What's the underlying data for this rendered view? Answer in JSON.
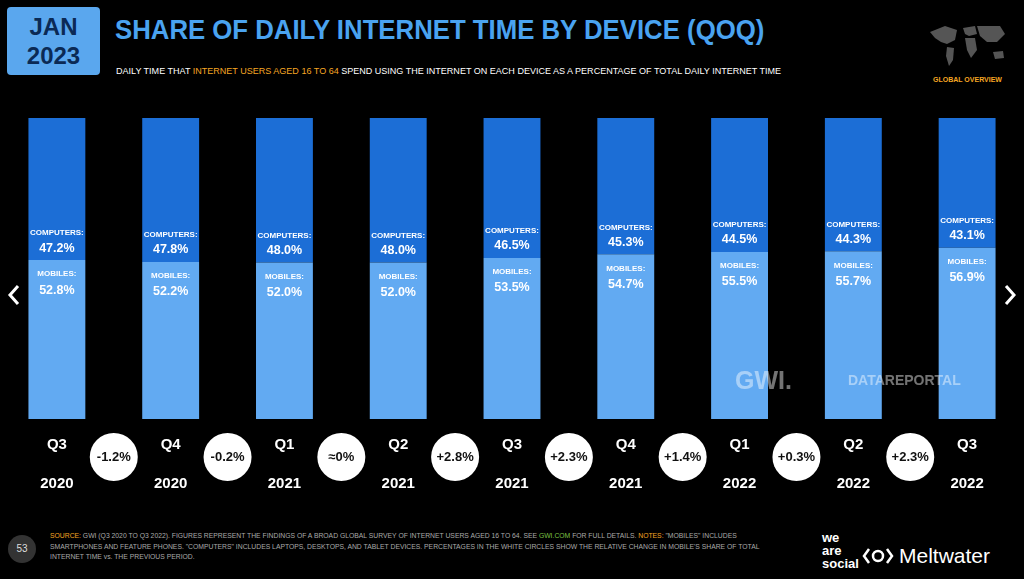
{
  "chart_data": {
    "type": "bar",
    "stacked": true,
    "data_labels": true,
    "tick_labels": "x",
    "grid": false,
    "title": "SHARE OF DAILY INTERNET TIME BY DEVICE (QOQ)",
    "subtitle": "DAILY TIME THAT INTERNET USERS AGED 16 TO 64 SPEND USING THE INTERNET ON EACH DEVICE AS A PERCENTAGE OF TOTAL DAILY INTERNET TIME",
    "subtitle_highlight": "INTERNET USERS AGED 16 TO 64",
    "categories": [
      "Q3 2020",
      "Q4 2020",
      "Q1 2021",
      "Q2 2021",
      "Q3 2021",
      "Q4 2021",
      "Q1 2022",
      "Q2 2022",
      "Q3 2022"
    ],
    "ylim": [
      0,
      100
    ],
    "series": [
      {
        "name": "MOBILES:",
        "color": "#62aaf2",
        "values": [
          52.8,
          52.2,
          52.0,
          52.0,
          53.5,
          54.7,
          55.5,
          55.7,
          56.9
        ],
        "value_labels": [
          "52.8%",
          "52.2%",
          "52.0%",
          "52.0%",
          "53.5%",
          "54.7%",
          "55.5%",
          "55.7%",
          "56.9%"
        ]
      },
      {
        "name": "COMPUTERS:",
        "color": "#1c6ed6",
        "values": [
          47.2,
          47.8,
          48.0,
          48.0,
          46.5,
          45.3,
          44.5,
          44.3,
          43.1
        ],
        "value_labels": [
          "47.2%",
          "47.8%",
          "48.0%",
          "48.0%",
          "46.5%",
          "45.3%",
          "44.5%",
          "44.3%",
          "43.1%"
        ]
      }
    ],
    "annotations": [
      "-1.2%",
      "-0.2%",
      "≈0%",
      "+2.8%",
      "+2.3%",
      "+1.4%",
      "+0.3%",
      "+2.3%"
    ]
  },
  "page": {
    "badge": [
      "JAN",
      "2023"
    ],
    "region_label": "GLOBAL OVERVIEW",
    "watermark": [
      "GWI.",
      "DATAREPORTAL"
    ],
    "page_number": "53",
    "footnote": [
      {
        "text": "SOURCE:",
        "color": "#f5a623"
      },
      {
        "text": " GWI (Q3 2020 TO Q3 2022). FIGURES REPRESENT THE FINDINGS OF A BROAD GLOBAL SURVEY OF INTERNET USERS AGED 16 TO 64. SEE ",
        "color": "#aaaaaa"
      },
      {
        "text": "GWI.COM",
        "color": "#7bc043"
      },
      {
        "text": " FOR FULL DETAILS. ",
        "color": "#aaaaaa"
      },
      {
        "text": "NOTES:",
        "color": "#f5a623"
      },
      {
        "text": " \"MOBILES\" INCLUDES SMARTPHONES AND FEATURE PHONES. \"COMPUTERS\" INCLUDES LAPTOPS, DESKTOPS, AND TABLET DEVICES. PERCENTAGES IN THE WHITE CIRCLES SHOW THE RELATIVE CHANGE IN MOBILE'S SHARE OF TOTAL INTERNET TIME vs. THE PREVIOUS PERIOD.",
        "color": "#aaaaaa"
      }
    ],
    "logo_lines": [
      "we",
      "are",
      "social"
    ],
    "logo_name": "Meltwater"
  }
}
